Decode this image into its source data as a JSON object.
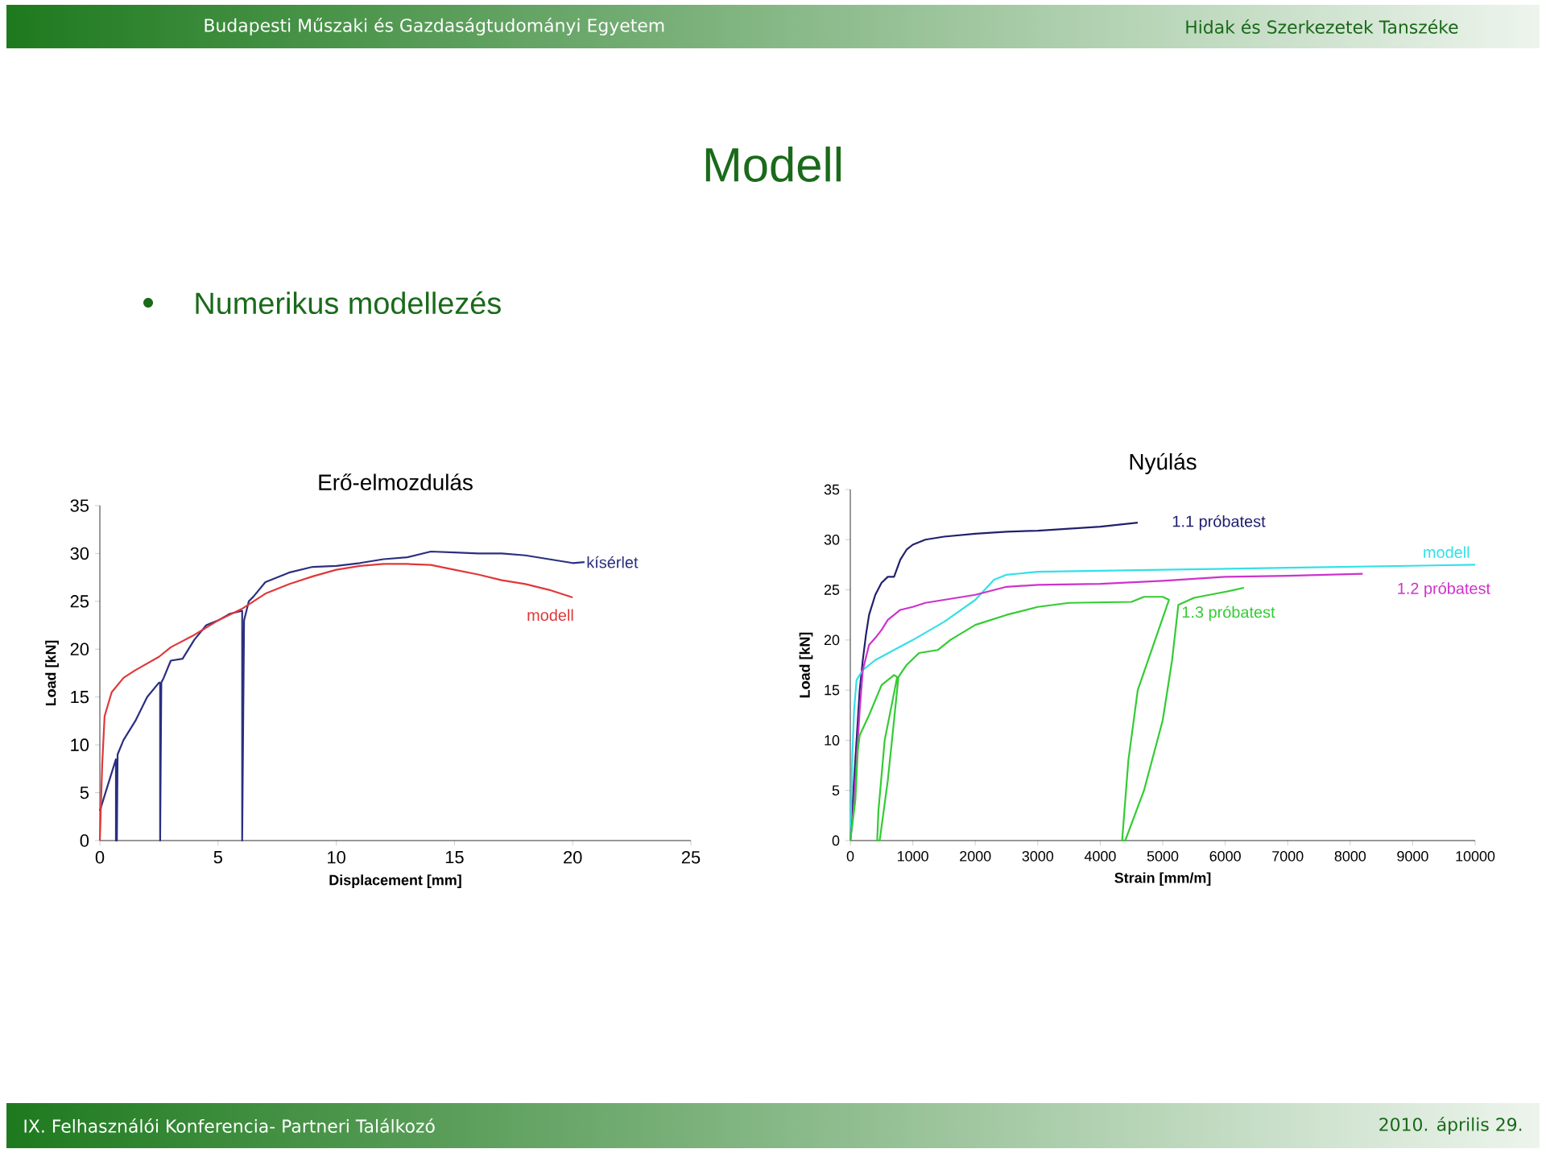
{
  "chart_data": [
    {
      "type": "line",
      "title": "Erő-elmozdulás",
      "xlabel": "Displacement [mm]",
      "ylabel": "Load [kN]",
      "annotations": [
        "Budapesti Műszaki és Gazdaságtudományi Egyetem",
        "Hidak és Szerkezetek Tanszéke",
        "Modell",
        "Numerikus modellezés",
        "IX. Felhasználói Konferencia- Partneri Találkozó",
        "2010. április 29."
      ],
      "xlim": [
        0,
        25
      ],
      "ylim": [
        0,
        35
      ],
      "xticks": [
        0,
        5,
        10,
        15,
        20,
        25
      ],
      "yticks": [
        0,
        5,
        10,
        15,
        20,
        25,
        30,
        35
      ],
      "series": [
        {
          "name": "kísérlet",
          "color": "#2b2f7f",
          "x": [
            0,
            0.3,
            0.68,
            0.68,
            0.72,
            0.75,
            1,
            1.5,
            2,
            2.5,
            2.55,
            2.55,
            2.6,
            2.7,
            3,
            3.5,
            4,
            4.5,
            5,
            5.5,
            6,
            6.02,
            6.02,
            6.1,
            6.3,
            6.5,
            7,
            8,
            9,
            10,
            11,
            12,
            13,
            14,
            15,
            16,
            17,
            18,
            19,
            20,
            20.5
          ],
          "values": [
            3.1,
            5.5,
            8.5,
            0,
            0,
            9,
            10.5,
            12.5,
            15,
            16.5,
            16.5,
            0,
            16.5,
            17,
            18.8,
            19,
            21,
            22.5,
            23,
            23.7,
            24,
            24,
            0,
            23,
            25,
            25.5,
            27,
            28,
            28.6,
            28.7,
            29,
            29.4,
            29.6,
            30.2,
            30.1,
            30,
            30,
            29.8,
            29.4,
            29,
            29.1
          ]
        },
        {
          "name": "modell",
          "color": "#e0383a",
          "x": [
            0,
            0.1,
            0.2,
            0.5,
            1,
            1.5,
            2,
            2.5,
            3,
            4,
            5,
            6,
            7,
            8,
            9,
            10,
            11,
            12,
            13,
            14,
            15,
            16,
            17,
            18,
            19,
            20
          ],
          "values": [
            0,
            8,
            13,
            15.5,
            17,
            17.8,
            18.5,
            19.2,
            20.2,
            21.5,
            23,
            24.2,
            25.8,
            26.8,
            27.6,
            28.3,
            28.7,
            28.9,
            28.9,
            28.8,
            28.3,
            27.8,
            27.2,
            26.8,
            26.2,
            25.4
          ]
        }
      ]
    },
    {
      "type": "line",
      "title": "Nyúlás",
      "xlabel": "Strain [mm/m]",
      "ylabel": "Load [kN]",
      "xlim": [
        0,
        10000
      ],
      "ylim": [
        0,
        35
      ],
      "xticks": [
        0,
        1000,
        2000,
        3000,
        4000,
        5000,
        6000,
        7000,
        8000,
        9000,
        10000
      ],
      "yticks": [
        0,
        5,
        10,
        15,
        20,
        25,
        30,
        35
      ],
      "series": [
        {
          "name": "1.1 próbatest",
          "color": "#20206e",
          "x": [
            0,
            50,
            100,
            150,
            200,
            250,
            300,
            400,
            500,
            600,
            700,
            800,
            900,
            1000,
            1200,
            1500,
            2000,
            2500,
            3000,
            3500,
            4000,
            4600
          ],
          "values": [
            0,
            5,
            10,
            15,
            18,
            20.5,
            22.5,
            24.5,
            25.7,
            26.3,
            26.3,
            28,
            29,
            29.5,
            30,
            30.3,
            30.6,
            30.8,
            30.9,
            31.1,
            31.3,
            31.7
          ]
        },
        {
          "name": "modell",
          "color": "#33e0e8",
          "x": [
            0,
            30,
            60,
            100,
            200,
            400,
            700,
            1000,
            1500,
            2000,
            2300,
            2500,
            3000,
            5000,
            7000,
            10000
          ],
          "values": [
            0,
            8,
            13,
            16,
            17,
            18,
            19,
            20,
            21.8,
            24,
            26,
            26.5,
            26.8,
            27,
            27.2,
            27.5
          ]
        },
        {
          "name": "1.2 próbatest",
          "color": "#cc33cc",
          "x": [
            0,
            50,
            100,
            150,
            200,
            300,
            400,
            500,
            600,
            800,
            1000,
            1200,
            1500,
            2000,
            2500,
            3000,
            4000,
            5000,
            6000,
            7000,
            8200
          ],
          "values": [
            0,
            3,
            8,
            13,
            17,
            19.5,
            20.2,
            21,
            22,
            23,
            23.3,
            23.7,
            24,
            24.5,
            25.3,
            25.5,
            25.6,
            25.9,
            26.3,
            26.4,
            26.6
          ]
        },
        {
          "name": "1.3 próbatest",
          "color": "#33cc33",
          "x": [
            0,
            80,
            120,
            150,
            300,
            400,
            500,
            700,
            750,
            550,
            450,
            430,
            470,
            600,
            700,
            770,
            900,
            1100,
            1400,
            1600,
            2000,
            2500,
            3000,
            3500,
            4500,
            4700,
            5000,
            5100,
            4600,
            4450,
            4350,
            4400,
            4700,
            5000,
            5150,
            5250,
            5500,
            6000,
            6300
          ],
          "values": [
            0,
            4,
            9,
            10.5,
            12.5,
            14,
            15.5,
            16.5,
            16.3,
            10,
            3,
            0,
            0,
            6,
            12,
            16.3,
            17.5,
            18.7,
            19,
            20,
            21.5,
            22.5,
            23.3,
            23.7,
            23.8,
            24.3,
            24.3,
            24,
            15,
            8,
            0,
            0,
            5,
            12,
            18,
            23.5,
            24.2,
            24.8,
            25.2
          ]
        }
      ]
    }
  ]
}
